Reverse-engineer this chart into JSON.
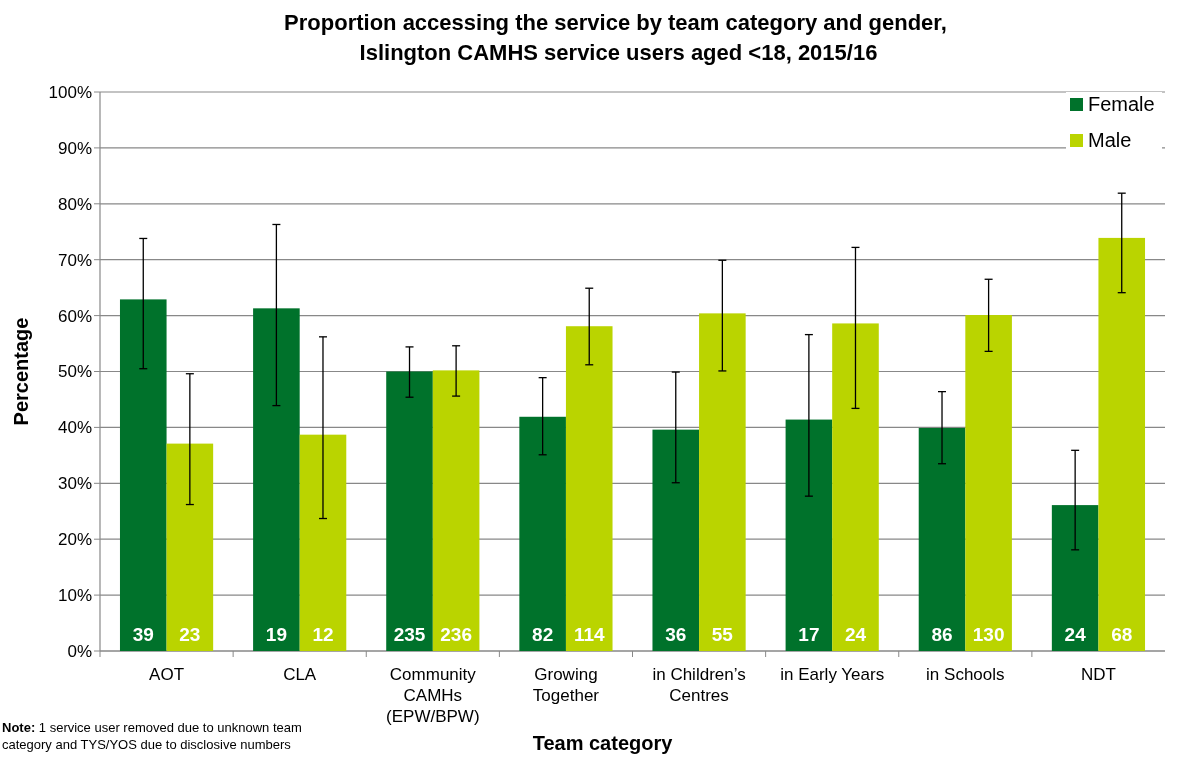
{
  "chart_data": {
    "type": "bar",
    "title": "Proportion accessing the service by team category and gender,  Islington CAMHS service users aged <18, 2015/16",
    "xlabel": "Team category",
    "ylabel": "Percentage",
    "categories": [
      "AOT",
      "CLA",
      "Community CAMHs (EPW/BPW)",
      "Growing Together",
      "in Children’s Centres",
      "in Early Years",
      "in Schools",
      "NDT"
    ],
    "series": [
      {
        "name": "Female",
        "color": "#00722b",
        "values": [
          62.9,
          61.3,
          50.0,
          41.9,
          39.6,
          41.4,
          39.9,
          26.1
        ],
        "errors": [
          [
            50.5,
            73.8
          ],
          [
            43.9,
            76.3
          ],
          [
            45.4,
            54.4
          ],
          [
            35.1,
            48.9
          ],
          [
            30.1,
            49.9
          ],
          [
            27.7,
            56.6
          ],
          [
            33.5,
            46.4
          ],
          [
            18.1,
            35.9
          ]
        ]
      },
      {
        "name": "Male",
        "color": "#bad400",
        "values": [
          37.1,
          38.7,
          50.2,
          58.1,
          60.4,
          58.6,
          60.1,
          73.9
        ],
        "errors": [
          [
            26.2,
            49.6
          ],
          [
            23.7,
            56.2
          ],
          [
            45.6,
            54.6
          ],
          [
            51.2,
            64.9
          ],
          [
            50.1,
            69.9
          ],
          [
            43.4,
            72.2
          ],
          [
            53.6,
            66.5
          ],
          [
            64.1,
            81.9
          ]
        ]
      }
    ],
    "ylim": [
      0,
      100
    ],
    "yticks": [
      {
        "value": 0,
        "label": "0%"
      },
      {
        "value": 10,
        "label": "10%"
      },
      {
        "value": 20,
        "label": "20%"
      },
      {
        "value": 30,
        "label": "30%"
      },
      {
        "value": 40,
        "label": "40%"
      },
      {
        "value": 50,
        "label": "50%"
      },
      {
        "value": 60,
        "label": "60%"
      },
      {
        "value": 70,
        "label": "70%"
      },
      {
        "value": 80,
        "label": "80%"
      },
      {
        "value": 90,
        "label": "90%"
      },
      {
        "value": 100,
        "label": "100%"
      }
    ],
    "grid": "y",
    "legend": "top right",
    "annotations": [
      "Note: 1 service user removed due to unknown team category and TYS/YOS due to disclosive numbers",
      {
        "text": "39",
        "x": "AOT",
        "y": 3
      },
      {
        "text": "23",
        "x": "AOT",
        "y": 3
      },
      {
        "text": "19",
        "x": "CLA",
        "y": 3
      },
      {
        "text": "12",
        "x": "CLA",
        "y": 3
      },
      {
        "text": "235",
        "x": "Community CAMHs (EPW/BPW)",
        "y": 3
      },
      {
        "text": "236",
        "x": "Community CAMHs (EPW/BPW)",
        "y": 3
      },
      {
        "text": "82",
        "x": "Growing Together",
        "y": 3
      },
      {
        "text": "114",
        "x": "Growing Together",
        "y": 3
      },
      {
        "text": "36",
        "x": "in Children’s Centres",
        "y": 3
      },
      {
        "text": "55",
        "x": "in Children’s Centres",
        "y": 3
      },
      {
        "text": "17",
        "x": "in Early Years",
        "y": 3
      },
      {
        "text": "24",
        "x": "in Early Years",
        "y": 3
      },
      {
        "text": "86",
        "x": "in Schools",
        "y": 3
      },
      {
        "text": "130",
        "x": "in Schools",
        "y": 3
      },
      {
        "text": "24",
        "x": "NDT",
        "y": 3
      },
      {
        "text": "68",
        "x": "NDT",
        "y": 3
      }
    ]
  }
}
